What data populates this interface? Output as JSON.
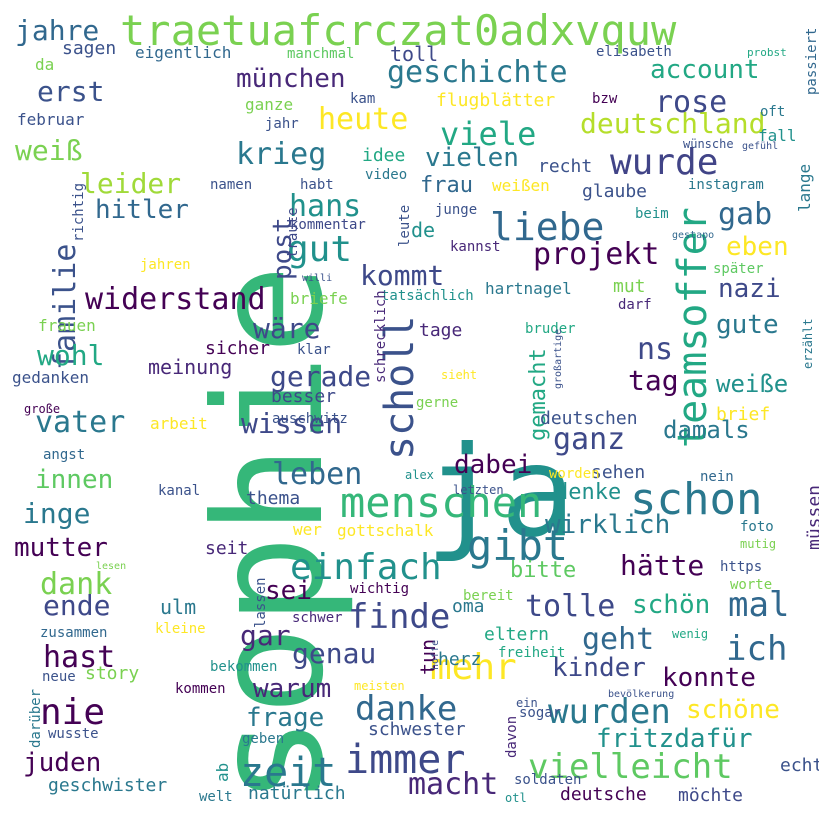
{
  "words": [
    {
      "text": "sophie",
      "color": "#35b779",
      "rotated": true
    },
    {
      "text": "ja",
      "color": "#21918c",
      "rotated": false
    },
    {
      "text": "traetuafcrczat0adxvquw",
      "color": "#7ad151",
      "rotated": false
    },
    {
      "text": "schon",
      "color": "#2a788e",
      "rotated": false
    },
    {
      "text": "menschen",
      "color": "#35b779",
      "rotated": false
    },
    {
      "text": "liebe",
      "color": "#31688e",
      "rotated": false
    },
    {
      "text": "teamsoffer",
      "color": "#22a884",
      "rotated": true
    },
    {
      "text": "scholl",
      "color": "#3b528b",
      "rotated": true
    },
    {
      "text": "gibt",
      "color": "#2a788e",
      "rotated": false
    },
    {
      "text": "immer",
      "color": "#3e4989",
      "rotated": false
    },
    {
      "text": "einfach",
      "color": "#21918c",
      "rotated": false
    },
    {
      "text": "mehr",
      "color": "#fde725",
      "rotated": false
    },
    {
      "text": "wurde",
      "color": "#414487",
      "rotated": false
    },
    {
      "text": "zeit",
      "color": "#2a788e",
      "rotated": false
    },
    {
      "text": "vielleicht",
      "color": "#5ec962",
      "rotated": false
    },
    {
      "text": "danke",
      "color": "#31688e",
      "rotated": false
    },
    {
      "text": "wurden",
      "color": "#2a788e",
      "rotated": false
    },
    {
      "text": "finde",
      "color": "#3e4989",
      "rotated": false
    },
    {
      "text": "projekt",
      "color": "#440154",
      "rotated": false
    },
    {
      "text": "geschichte",
      "color": "#2a788e",
      "rotated": false
    },
    {
      "text": "heute",
      "color": "#fde725",
      "rotated": false
    },
    {
      "text": "viele",
      "color": "#22a884",
      "rotated": false
    },
    {
      "text": "deutschland",
      "color": "#b5de2b",
      "rotated": false
    },
    {
      "text": "account",
      "color": "#22a884",
      "rotated": false
    },
    {
      "text": "rose",
      "color": "#3e4989",
      "rotated": false
    },
    {
      "text": "krieg",
      "color": "#2a788e",
      "rotated": false
    },
    {
      "text": "münchen",
      "color": "#482878",
      "rotated": false
    },
    {
      "text": "hans",
      "color": "#21918c",
      "rotated": false
    },
    {
      "text": "gut",
      "color": "#21918c",
      "rotated": false
    },
    {
      "text": "widerstand",
      "color": "#440154",
      "rotated": false
    },
    {
      "text": "kommt",
      "color": "#3e4989",
      "rotated": false
    },
    {
      "text": "leben",
      "color": "#31688e",
      "rotated": false
    },
    {
      "text": "gerade",
      "color": "#3e4989",
      "rotated": false
    },
    {
      "text": "wissen",
      "color": "#3e4989",
      "rotated": false
    },
    {
      "text": "wäre",
      "color": "#3e4989",
      "rotated": false
    },
    {
      "text": "macht",
      "color": "#482878",
      "rotated": false
    },
    {
      "text": "ich",
      "color": "#31688e",
      "rotated": false
    },
    {
      "text": "mal",
      "color": "#31688e",
      "rotated": false
    },
    {
      "text": "gab",
      "color": "#31688e",
      "rotated": false
    },
    {
      "text": "nazi",
      "color": "#3e4989",
      "rotated": false
    },
    {
      "text": "gute",
      "color": "#2a788e",
      "rotated": false
    },
    {
      "text": "ganz",
      "color": "#3e4989",
      "rotated": false
    },
    {
      "text": "dabei",
      "color": "#440154",
      "rotated": false
    },
    {
      "text": "tolle",
      "color": "#3e4989",
      "rotated": false
    },
    {
      "text": "wirklich",
      "color": "#2a788e",
      "rotated": false
    },
    {
      "text": "hätte",
      "color": "#440154",
      "rotated": false
    },
    {
      "text": "geht",
      "color": "#31688e",
      "rotated": false
    },
    {
      "text": "genau",
      "color": "#3e4989",
      "rotated": false
    },
    {
      "text": "gar",
      "color": "#482878",
      "rotated": false
    },
    {
      "text": "konnte",
      "color": "#440154",
      "rotated": false
    },
    {
      "text": "kinder",
      "color": "#3e4989",
      "rotated": false
    },
    {
      "text": "fritzdafür",
      "color": "#21918c",
      "rotated": false
    },
    {
      "text": "schöne",
      "color": "#fde725",
      "rotated": false
    },
    {
      "text": "familie",
      "color": "#3b528b",
      "rotated": true
    },
    {
      "text": "mutter",
      "color": "#440154",
      "rotated": false
    },
    {
      "text": "juden",
      "color": "#440154",
      "rotated": false
    },
    {
      "text": "nie",
      "color": "#440154",
      "rotated": false
    },
    {
      "text": "hast",
      "color": "#440154",
      "rotated": false
    },
    {
      "text": "dank",
      "color": "#7ad151",
      "rotated": false
    },
    {
      "text": "inge",
      "color": "#2a788e",
      "rotated": false
    },
    {
      "text": "innen",
      "color": "#5ec962",
      "rotated": false
    },
    {
      "text": "vater",
      "color": "#2a788e",
      "rotated": false
    },
    {
      "text": "wohl",
      "color": "#22a884",
      "rotated": false
    },
    {
      "text": "weiß",
      "color": "#7ad151",
      "rotated": false
    },
    {
      "text": "erst",
      "color": "#3b528b",
      "rotated": false
    },
    {
      "text": "jahre",
      "color": "#31688e",
      "rotated": false
    },
    {
      "text": "leider",
      "color": "#a0da39",
      "rotated": false
    },
    {
      "text": "hitler",
      "color": "#31688e",
      "rotated": false
    },
    {
      "text": "ende",
      "color": "#3e4989",
      "rotated": false
    },
    {
      "text": "post",
      "color": "#3e4989",
      "rotated": true
    },
    {
      "text": "sei",
      "color": "#440154",
      "rotated": false
    },
    {
      "text": "warum",
      "color": "#482878",
      "rotated": false
    },
    {
      "text": "frage",
      "color": "#2a788e",
      "rotated": false
    },
    {
      "text": "denke",
      "color": "#21918c",
      "rotated": false
    },
    {
      "text": "bitte",
      "color": "#5ec962",
      "rotated": false
    },
    {
      "text": "eben",
      "color": "#fde725",
      "rotated": false
    },
    {
      "text": "weiße",
      "color": "#21918c",
      "rotated": false
    },
    {
      "text": "tag",
      "color": "#440154",
      "rotated": false
    },
    {
      "text": "ns",
      "color": "#3e4989",
      "rotated": false
    },
    {
      "text": "damals",
      "color": "#2a788e",
      "rotated": false
    },
    {
      "text": "frau",
      "color": "#31688e",
      "rotated": false
    },
    {
      "text": "vielen",
      "color": "#2a788e",
      "rotated": false
    },
    {
      "text": "de",
      "color": "#21918c",
      "rotated": false
    },
    {
      "text": "gemacht",
      "color": "#22a884",
      "rotated": true
    },
    {
      "text": "schön",
      "color": "#22a884",
      "rotated": false
    },
    {
      "text": "story",
      "color": "#7ad151",
      "rotated": false
    },
    {
      "text": "sicher",
      "color": "#440154",
      "rotated": false
    },
    {
      "text": "meinung",
      "color": "#482878",
      "rotated": false
    },
    {
      "text": "mut",
      "color": "#7ad151",
      "rotated": false
    },
    {
      "text": "sagen",
      "color": "#3b528b",
      "rotated": false
    },
    {
      "text": "toll",
      "color": "#3e4989",
      "rotated": false
    },
    {
      "text": "ulm",
      "color": "#2a788e",
      "rotated": false
    },
    {
      "text": "oma",
      "color": "#2a788e",
      "rotated": false
    },
    {
      "text": "tun",
      "color": "#440154",
      "rotated": true
    },
    {
      "text": "eltern",
      "color": "#22a884",
      "rotated": false
    },
    {
      "text": "herz",
      "color": "#2a788e",
      "rotated": false
    },
    {
      "text": "tage",
      "color": "#482878",
      "rotated": false
    },
    {
      "text": "besser",
      "color": "#3e4989",
      "rotated": false
    },
    {
      "text": "deutschen",
      "color": "#3b528b",
      "rotated": false
    },
    {
      "text": "sehen",
      "color": "#3b528b",
      "rotated": false
    },
    {
      "text": "müssen",
      "color": "#482878",
      "rotated": true
    },
    {
      "text": "brief",
      "color": "#fde725",
      "rotated": false
    },
    {
      "text": "seit",
      "color": "#482878",
      "rotated": false
    },
    {
      "text": "thema",
      "color": "#3b528b",
      "rotated": false
    },
    {
      "text": "schwester",
      "color": "#3b528b",
      "rotated": false
    },
    {
      "text": "geschwister",
      "color": "#2a788e",
      "rotated": false
    },
    {
      "text": "natürlich",
      "color": "#2a788e",
      "rotated": false
    },
    {
      "text": "deutsche",
      "color": "#440154",
      "rotated": false
    },
    {
      "text": "möchte",
      "color": "#3e4989",
      "rotated": false
    },
    {
      "text": "echt",
      "color": "#3b528b",
      "rotated": false
    },
    {
      "text": "eigentlich",
      "color": "#31688e",
      "rotated": false
    },
    {
      "text": "manchmal",
      "color": "#5ec962",
      "rotated": false
    },
    {
      "text": "elisabeth",
      "color": "#3b528b",
      "rotated": false
    },
    {
      "text": "passiert",
      "color": "#31688e",
      "rotated": true
    },
    {
      "text": "probst",
      "color": "#22a884",
      "rotated": false
    },
    {
      "text": "februar",
      "color": "#3b528b",
      "rotated": false
    },
    {
      "text": "ganze",
      "color": "#7ad151",
      "rotated": false
    },
    {
      "text": "jahr",
      "color": "#3b528b",
      "rotated": false
    },
    {
      "text": "kam",
      "color": "#3b528b",
      "rotated": false
    },
    {
      "text": "flugblätter",
      "color": "#fde725",
      "rotated": false
    },
    {
      "text": "bzw",
      "color": "#440154",
      "rotated": false
    },
    {
      "text": "fall",
      "color": "#21918c",
      "rotated": false
    },
    {
      "text": "oft",
      "color": "#2a788e",
      "rotated": false
    },
    {
      "text": "lange",
      "color": "#2a788e",
      "rotated": true
    },
    {
      "text": "instagram",
      "color": "#2a788e",
      "rotated": false
    },
    {
      "text": "wünsche",
      "color": "#3b528b",
      "rotated": false
    },
    {
      "text": "gefühl",
      "color": "#3b528b",
      "rotated": false
    },
    {
      "text": "beim",
      "color": "#21918c",
      "rotated": false
    },
    {
      "text": "gestapo",
      "color": "#31688e",
      "rotated": false
    },
    {
      "text": "später",
      "color": "#5ec962",
      "rotated": false
    },
    {
      "text": "recht",
      "color": "#3b528b",
      "rotated": false
    },
    {
      "text": "glaube",
      "color": "#3b528b",
      "rotated": false
    },
    {
      "text": "idee",
      "color": "#22a884",
      "rotated": false
    },
    {
      "text": "video",
      "color": "#2a788e",
      "rotated": false
    },
    {
      "text": "weißen",
      "color": "#fde725",
      "rotated": false
    },
    {
      "text": "traute",
      "color": "#3e4989",
      "rotated": true
    },
    {
      "text": "namen",
      "color": "#3b528b",
      "rotated": false
    },
    {
      "text": "habt",
      "color": "#3b528b",
      "rotated": false
    },
    {
      "text": "kommentar",
      "color": "#3e4989",
      "rotated": false
    },
    {
      "text": "junge",
      "color": "#3b528b",
      "rotated": false
    },
    {
      "text": "leute",
      "color": "#3b528b",
      "rotated": true
    },
    {
      "text": "kannst",
      "color": "#482878",
      "rotated": false
    },
    {
      "text": "richtig",
      "color": "#3b528b",
      "rotated": true
    },
    {
      "text": "jahren",
      "color": "#fde725",
      "rotated": false
    },
    {
      "text": "willi",
      "color": "#3b528b",
      "rotated": false
    },
    {
      "text": "briefe",
      "color": "#7ad151",
      "rotated": false
    },
    {
      "text": "tatsächlich",
      "color": "#21918c",
      "rotated": false
    },
    {
      "text": "hartnagel",
      "color": "#2a788e",
      "rotated": false
    },
    {
      "text": "darf",
      "color": "#482878",
      "rotated": false
    },
    {
      "text": "bruder",
      "color": "#22a884",
      "rotated": false
    },
    {
      "text": "erzählt",
      "color": "#2a788e",
      "rotated": true
    },
    {
      "text": "frauen",
      "color": "#7ad151",
      "rotated": false
    },
    {
      "text": "klar",
      "color": "#3b528b",
      "rotated": false
    },
    {
      "text": "schrecklich",
      "color": "#482878",
      "rotated": true
    },
    {
      "text": "gedanken",
      "color": "#3b528b",
      "rotated": false
    },
    {
      "text": "sieht",
      "color": "#fde725",
      "rotated": false
    },
    {
      "text": "großartige",
      "color": "#3b528b",
      "rotated": true
    },
    {
      "text": "große",
      "color": "#440154",
      "rotated": false
    },
    {
      "text": "gerne",
      "color": "#7ad151",
      "rotated": false
    },
    {
      "text": "arbeit",
      "color": "#fde725",
      "rotated": false
    },
    {
      "text": "auschwitz",
      "color": "#3b528b",
      "rotated": false
    },
    {
      "text": "angst",
      "color": "#31688e",
      "rotated": false
    },
    {
      "text": "alex",
      "color": "#21918c",
      "rotated": false
    },
    {
      "text": "worden",
      "color": "#fde725",
      "rotated": false
    },
    {
      "text": "nein",
      "color": "#31688e",
      "rotated": false
    },
    {
      "text": "kanal",
      "color": "#3b528b",
      "rotated": false
    },
    {
      "text": "letzten",
      "color": "#3b528b",
      "rotated": false
    },
    {
      "text": "wer",
      "color": "#fde725",
      "rotated": false
    },
    {
      "text": "gottschalk",
      "color": "#fde725",
      "rotated": false
    },
    {
      "text": "foto",
      "color": "#2a788e",
      "rotated": false
    },
    {
      "text": "mutig",
      "color": "#7ad151",
      "rotated": false
    },
    {
      "text": "lesen",
      "color": "#7ad151",
      "rotated": false
    },
    {
      "text": "lassen",
      "color": "#3b528b",
      "rotated": true
    },
    {
      "text": "bereit",
      "color": "#7ad151",
      "rotated": false
    },
    {
      "text": "https",
      "color": "#3b528b",
      "rotated": false
    },
    {
      "text": "worte",
      "color": "#7ad151",
      "rotated": false
    },
    {
      "text": "wichtig",
      "color": "#440154",
      "rotated": false
    },
    {
      "text": "schwer",
      "color": "#482878",
      "rotated": false
    },
    {
      "text": "zusammen",
      "color": "#31688e",
      "rotated": false
    },
    {
      "text": "kleine",
      "color": "#fde725",
      "rotated": false
    },
    {
      "text": "wenig",
      "color": "#22a884",
      "rotated": false
    },
    {
      "text": "hoffe",
      "color": "#3b528b",
      "rotated": true
    },
    {
      "text": "freiheit",
      "color": "#22a884",
      "rotated": false
    },
    {
      "text": "bekommen",
      "color": "#21918c",
      "rotated": false
    },
    {
      "text": "neue",
      "color": "#3b528b",
      "rotated": false
    },
    {
      "text": "kommen",
      "color": "#440154",
      "rotated": false
    },
    {
      "text": "meisten",
      "color": "#fde725",
      "rotated": false
    },
    {
      "text": "bevölkerung",
      "color": "#3b528b",
      "rotated": false
    },
    {
      "text": "darüber",
      "color": "#2a788e",
      "rotated": true
    },
    {
      "text": "wusste",
      "color": "#3b528b",
      "rotated": false
    },
    {
      "text": "geben",
      "color": "#2a788e",
      "rotated": false
    },
    {
      "text": "ab",
      "color": "#21918c",
      "rotated": true
    },
    {
      "text": "davon",
      "color": "#482878",
      "rotated": true
    },
    {
      "text": "sogar",
      "color": "#3b528b",
      "rotated": false
    },
    {
      "text": "ein",
      "color": "#3b528b",
      "rotated": false
    },
    {
      "text": "soldaten",
      "color": "#3b528b",
      "rotated": false
    },
    {
      "text": "welt",
      "color": "#2a788e",
      "rotated": false
    },
    {
      "text": "otl",
      "color": "#21918c",
      "rotated": false
    },
    {
      "text": "da",
      "color": "#7ad151",
      "rotated": false
    }
  ]
}
